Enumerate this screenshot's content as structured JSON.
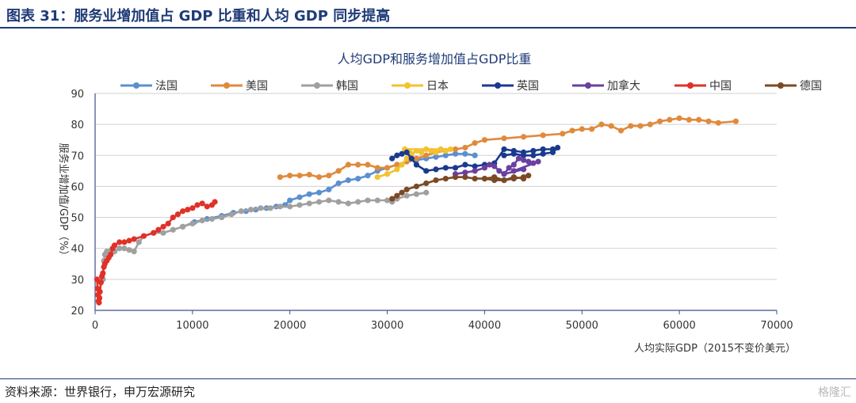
{
  "figure_title": "图表 31：服务业增加值占 GDP 比重和人均 GDP 同步提高",
  "source": "资料来源：世界银行，申万宏源研究",
  "watermark": "格隆汇",
  "colors": {
    "title": "#1f3b78",
    "axis": "#3a4f8f",
    "grid": "#d0d0d0"
  },
  "chart_data": {
    "type": "scatter",
    "title": "人均GDP和服务增加值占GDP比重",
    "xlabel": "人均实际GDP（2015不变价美元）",
    "ylabel": "服务业增加值/GDP（%）",
    "xlim": [
      0,
      70000
    ],
    "ylim": [
      20,
      90
    ],
    "xticks": [
      0,
      10000,
      20000,
      30000,
      40000,
      50000,
      60000,
      70000
    ],
    "yticks": [
      20,
      30,
      40,
      50,
      60,
      70,
      80,
      90
    ],
    "xtick_labels": [
      "0",
      "10000",
      "20000",
      "30000",
      "40000",
      "50000",
      "60000",
      "70000"
    ],
    "ytick_labels": [
      "20",
      "30",
      "40",
      "50",
      "60",
      "70",
      "80",
      "90"
    ],
    "legend_position": "top",
    "series": [
      {
        "name": "法国",
        "color": "#5b8fd0",
        "points": [
          [
            9000,
            47
          ],
          [
            10200,
            48.5
          ],
          [
            11500,
            49.5
          ],
          [
            13000,
            50.5
          ],
          [
            14200,
            51.5
          ],
          [
            15500,
            52
          ],
          [
            16500,
            52.5
          ],
          [
            17600,
            53
          ],
          [
            18600,
            53.5
          ],
          [
            19500,
            54
          ],
          [
            20000,
            55.5
          ],
          [
            21000,
            56.5
          ],
          [
            22000,
            57.5
          ],
          [
            23000,
            58
          ],
          [
            24000,
            59
          ],
          [
            25000,
            61
          ],
          [
            26000,
            62
          ],
          [
            27000,
            62.5
          ],
          [
            28000,
            63.5
          ],
          [
            29000,
            65
          ],
          [
            30000,
            66
          ],
          [
            31000,
            67
          ],
          [
            32000,
            68
          ],
          [
            33000,
            68.5
          ],
          [
            34000,
            69
          ],
          [
            35000,
            69.5
          ],
          [
            36000,
            70
          ],
          [
            37000,
            70.5
          ],
          [
            38000,
            70.5
          ],
          [
            39000,
            70
          ]
        ]
      },
      {
        "name": "美国",
        "color": "#e08a3c",
        "points": [
          [
            19000,
            63
          ],
          [
            20000,
            63.5
          ],
          [
            21000,
            63.5
          ],
          [
            22000,
            63.8
          ],
          [
            23000,
            63
          ],
          [
            24000,
            63.5
          ],
          [
            25000,
            65
          ],
          [
            26000,
            67
          ],
          [
            27000,
            67
          ],
          [
            28000,
            67
          ],
          [
            29000,
            66
          ],
          [
            30000,
            66
          ],
          [
            31000,
            67
          ],
          [
            32000,
            68
          ],
          [
            33000,
            69
          ],
          [
            34000,
            70
          ],
          [
            35000,
            71
          ],
          [
            36000,
            71.5
          ],
          [
            37000,
            72
          ],
          [
            38000,
            72.5
          ],
          [
            39000,
            74
          ],
          [
            40000,
            75
          ],
          [
            42000,
            75.5
          ],
          [
            44000,
            76
          ],
          [
            46000,
            76.5
          ],
          [
            48000,
            77
          ],
          [
            49000,
            78
          ],
          [
            50000,
            78.5
          ],
          [
            51000,
            78.5
          ],
          [
            52000,
            80
          ],
          [
            53000,
            79.5
          ],
          [
            54000,
            78
          ],
          [
            55000,
            79.5
          ],
          [
            56000,
            79.5
          ],
          [
            57000,
            80
          ],
          [
            58000,
            81
          ],
          [
            59000,
            81.5
          ],
          [
            60000,
            82
          ],
          [
            61000,
            81.5
          ],
          [
            62000,
            81.5
          ],
          [
            63000,
            81
          ],
          [
            64000,
            80.5
          ],
          [
            65800,
            81
          ]
        ]
      },
      {
        "name": "韩国",
        "color": "#a0a0a0",
        "points": [
          [
            800,
            30
          ],
          [
            900,
            36
          ],
          [
            1000,
            38
          ],
          [
            1200,
            39
          ],
          [
            1500,
            39
          ],
          [
            2000,
            39
          ],
          [
            2500,
            40
          ],
          [
            3000,
            40
          ],
          [
            3500,
            39.5
          ],
          [
            4000,
            39
          ],
          [
            4500,
            42
          ],
          [
            5000,
            44
          ],
          [
            6000,
            45
          ],
          [
            7000,
            45
          ],
          [
            8000,
            46
          ],
          [
            9000,
            47
          ],
          [
            10000,
            48
          ],
          [
            11000,
            49
          ],
          [
            12000,
            49.5
          ],
          [
            13000,
            50
          ],
          [
            14000,
            51
          ],
          [
            15000,
            52
          ],
          [
            16000,
            52.5
          ],
          [
            17000,
            53
          ],
          [
            18000,
            53
          ],
          [
            19000,
            53.5
          ],
          [
            20000,
            53.5
          ],
          [
            21000,
            54
          ],
          [
            22000,
            54.5
          ],
          [
            23000,
            55
          ],
          [
            24000,
            55.5
          ],
          [
            25000,
            55
          ],
          [
            26000,
            54.5
          ],
          [
            27000,
            55
          ],
          [
            28000,
            55.5
          ],
          [
            29000,
            55.5
          ],
          [
            30000,
            55.5
          ],
          [
            30500,
            55
          ],
          [
            31000,
            56
          ],
          [
            32000,
            57
          ],
          [
            33000,
            57.5
          ],
          [
            34000,
            58
          ]
        ]
      },
      {
        "name": "日本",
        "color": "#f2c230",
        "points": [
          [
            29000,
            63
          ],
          [
            30000,
            64
          ],
          [
            31000,
            65.5
          ],
          [
            31500,
            67
          ],
          [
            32000,
            69
          ],
          [
            32500,
            70.5
          ],
          [
            33000,
            71.5
          ],
          [
            33500,
            71
          ],
          [
            34000,
            72
          ],
          [
            34500,
            71.5
          ],
          [
            35000,
            71
          ],
          [
            35500,
            72
          ],
          [
            36000,
            71.5
          ],
          [
            36500,
            72
          ],
          [
            31800,
            72
          ],
          [
            32200,
            71.5
          ]
        ]
      },
      {
        "name": "英国",
        "color": "#1a3a8f",
        "points": [
          [
            30500,
            69
          ],
          [
            31000,
            70
          ],
          [
            31500,
            70.5
          ],
          [
            32000,
            71
          ],
          [
            32500,
            69
          ],
          [
            33000,
            67
          ],
          [
            34000,
            65
          ],
          [
            35000,
            65.5
          ],
          [
            36000,
            66
          ],
          [
            37000,
            66
          ],
          [
            38000,
            67
          ],
          [
            39000,
            66.5
          ],
          [
            40000,
            67
          ],
          [
            41000,
            67.5
          ],
          [
            42000,
            72
          ],
          [
            43000,
            71.5
          ],
          [
            44000,
            71
          ],
          [
            45000,
            71.5
          ],
          [
            46000,
            72
          ],
          [
            47000,
            72
          ],
          [
            47500,
            72.5
          ],
          [
            47000,
            71
          ],
          [
            46000,
            70.5
          ],
          [
            45000,
            70
          ],
          [
            44000,
            70
          ],
          [
            43000,
            70.5
          ],
          [
            42000,
            70
          ]
        ]
      },
      {
        "name": "加拿大",
        "color": "#6b3fa0",
        "points": [
          [
            37000,
            64
          ],
          [
            38000,
            64.5
          ],
          [
            39000,
            65
          ],
          [
            40000,
            66
          ],
          [
            40500,
            67
          ],
          [
            41000,
            66.5
          ],
          [
            41500,
            65
          ],
          [
            42000,
            64
          ],
          [
            42500,
            66
          ],
          [
            43000,
            67
          ],
          [
            43500,
            69
          ],
          [
            44000,
            68.5
          ],
          [
            44500,
            68
          ],
          [
            45000,
            67.5
          ],
          [
            45500,
            68
          ],
          [
            43000,
            65
          ],
          [
            44000,
            65.5
          ],
          [
            42000,
            64
          ]
        ]
      },
      {
        "name": "中国",
        "color": "#e03128",
        "points": [
          [
            200,
            30
          ],
          [
            250,
            27
          ],
          [
            300,
            25
          ],
          [
            350,
            23
          ],
          [
            400,
            22.5
          ],
          [
            450,
            24
          ],
          [
            500,
            26
          ],
          [
            600,
            29
          ],
          [
            700,
            31
          ],
          [
            800,
            32
          ],
          [
            900,
            34
          ],
          [
            1000,
            35
          ],
          [
            1200,
            36
          ],
          [
            1400,
            37
          ],
          [
            1600,
            38
          ],
          [
            1800,
            40
          ],
          [
            2000,
            41
          ],
          [
            2500,
            42
          ],
          [
            3000,
            42
          ],
          [
            3500,
            42.5
          ],
          [
            4000,
            43
          ],
          [
            5000,
            44
          ],
          [
            6000,
            45
          ],
          [
            6500,
            46
          ],
          [
            7000,
            47
          ],
          [
            7500,
            48
          ],
          [
            8000,
            50
          ],
          [
            8500,
            51
          ],
          [
            9000,
            52
          ],
          [
            9500,
            52.5
          ],
          [
            10000,
            53
          ],
          [
            10500,
            54
          ],
          [
            11000,
            54.5
          ],
          [
            11500,
            53.5
          ],
          [
            12000,
            54
          ],
          [
            12300,
            55
          ]
        ]
      },
      {
        "name": "德国",
        "color": "#7b4a25",
        "points": [
          [
            30500,
            56
          ],
          [
            31000,
            57
          ],
          [
            31500,
            58
          ],
          [
            32000,
            59
          ],
          [
            33000,
            60
          ],
          [
            34000,
            61
          ],
          [
            35000,
            62
          ],
          [
            36000,
            62.5
          ],
          [
            37000,
            63
          ],
          [
            38000,
            63
          ],
          [
            39000,
            62.5
          ],
          [
            40000,
            62.5
          ],
          [
            41000,
            62
          ],
          [
            42000,
            62
          ],
          [
            43000,
            62.5
          ],
          [
            44000,
            63
          ],
          [
            44500,
            63.5
          ],
          [
            44000,
            62.5
          ],
          [
            43000,
            63
          ],
          [
            42000,
            62
          ],
          [
            41000,
            63
          ],
          [
            40000,
            62.5
          ]
        ]
      }
    ]
  }
}
